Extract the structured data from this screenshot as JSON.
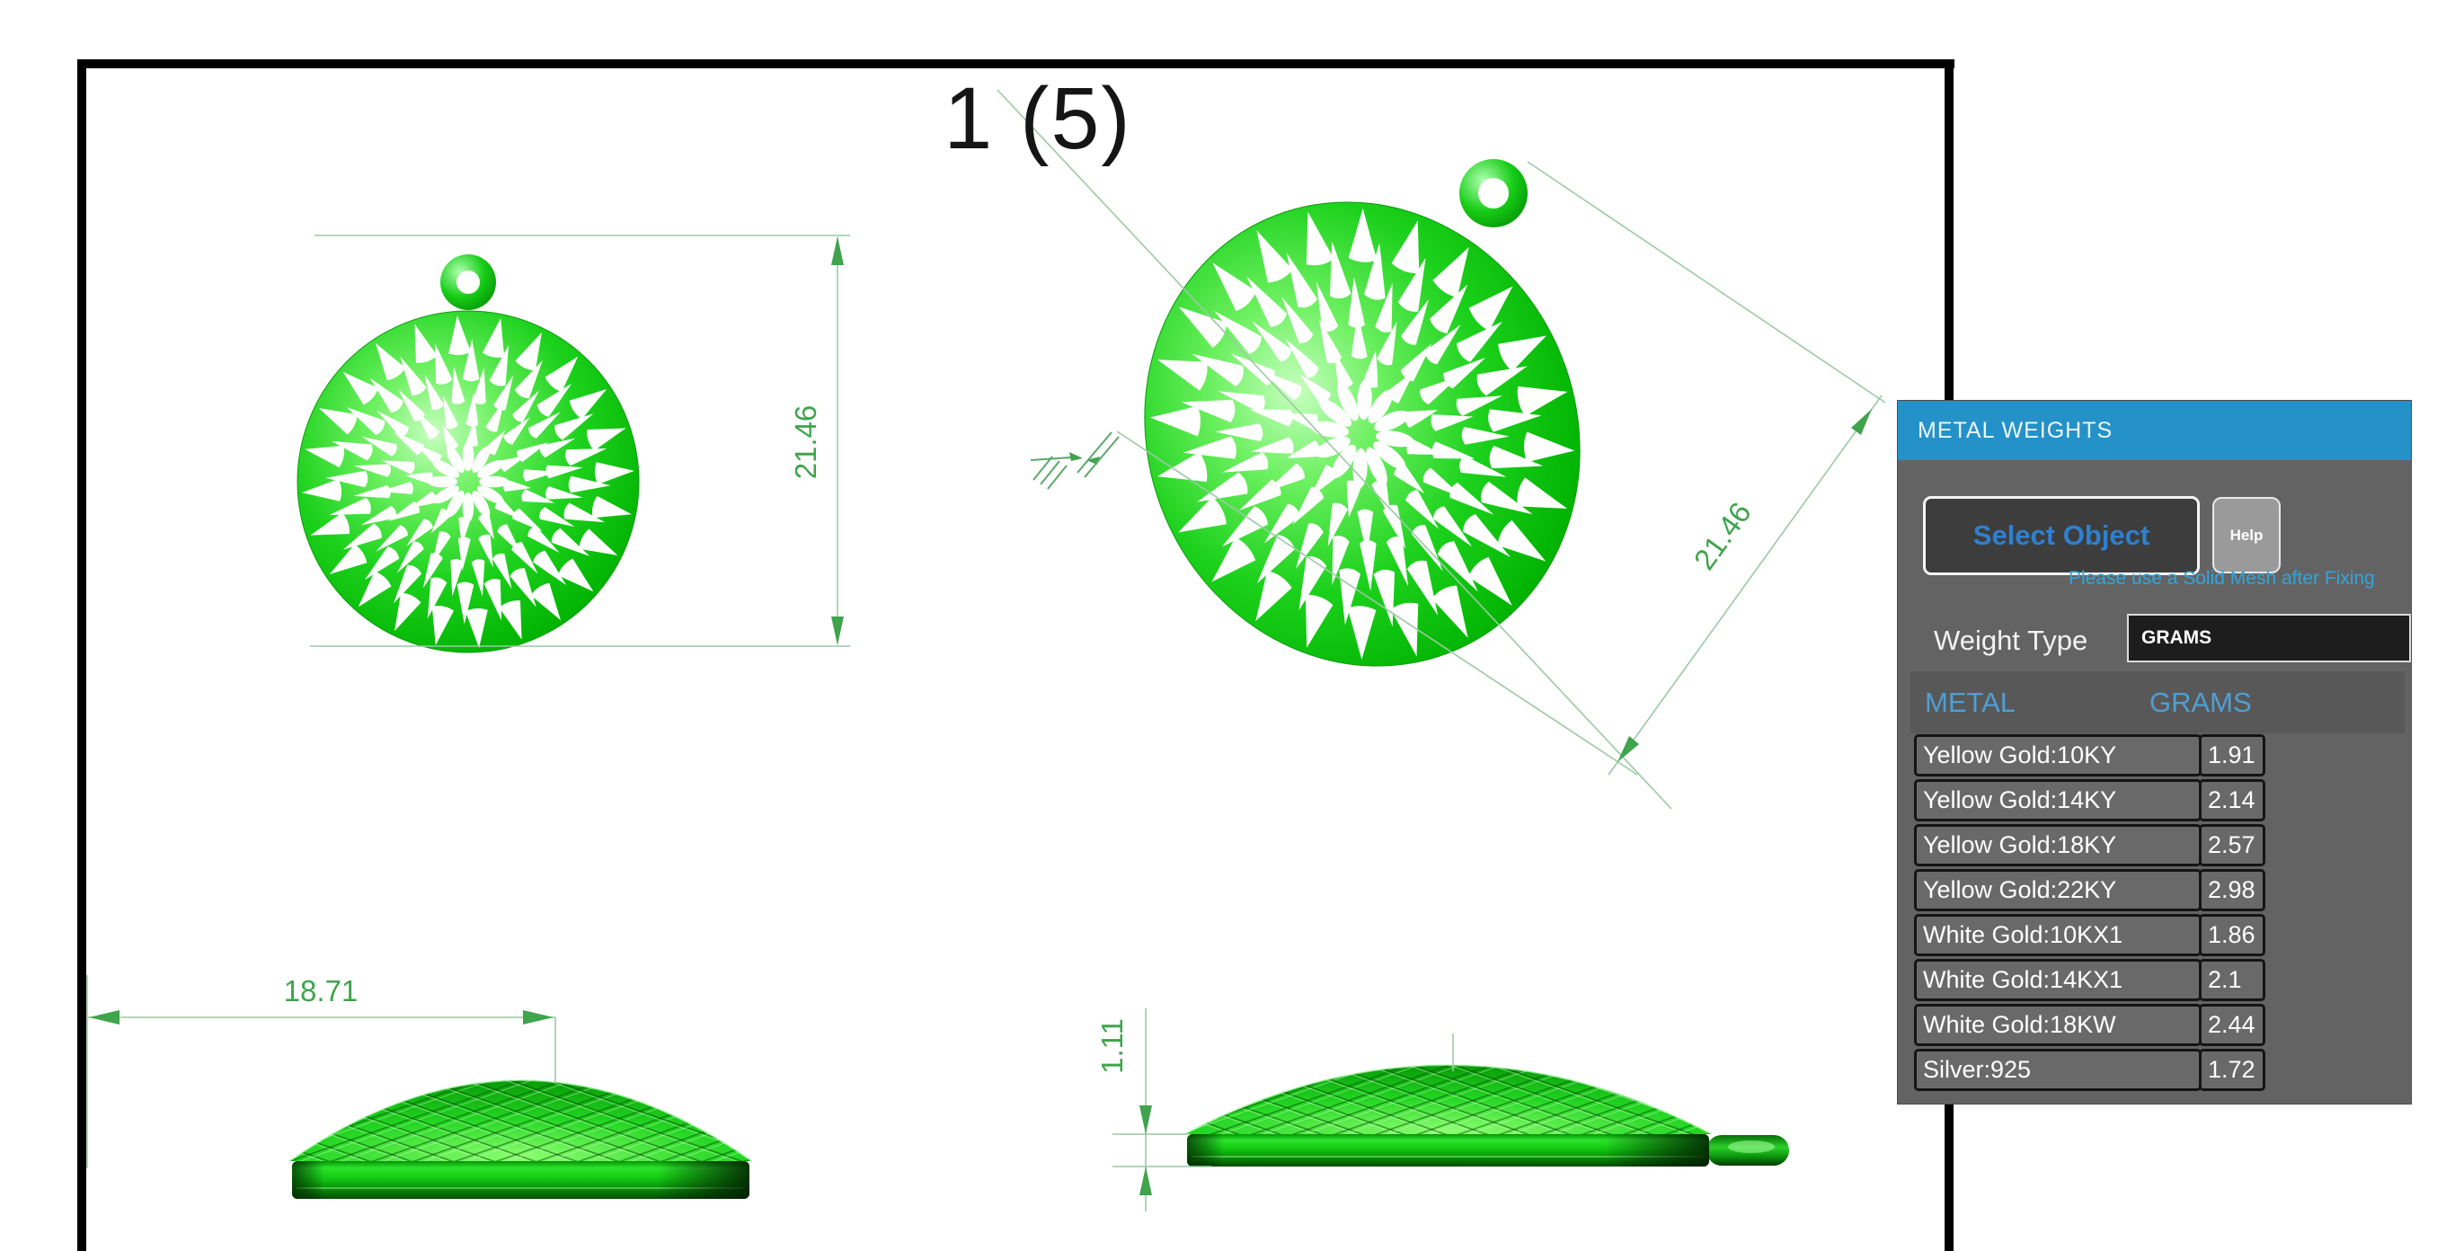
{
  "title": "1 (5)",
  "drawing": {
    "dims": {
      "front_height": "21.46",
      "tilted_diameter": "21.46",
      "side_width": "18.71",
      "side_thickness": "1.11"
    }
  },
  "panel": {
    "title": "METAL WEIGHTS",
    "select_object_label": "Select Object",
    "help_label": "Help",
    "notice": "Please use a Solid Mesh after Fixing",
    "weight_type_label": "Weight Type",
    "weight_type_value": "GRAMS",
    "table": {
      "columns": [
        "METAL",
        "GRAMS"
      ],
      "rows": [
        {
          "metal": "Yellow Gold:10KY",
          "grams": "1.91"
        },
        {
          "metal": "Yellow Gold:14KY",
          "grams": "2.14"
        },
        {
          "metal": "Yellow Gold:18KY",
          "grams": "2.57"
        },
        {
          "metal": "Yellow Gold:22KY",
          "grams": "2.98"
        },
        {
          "metal": "White Gold:10KX1",
          "grams": "1.86"
        },
        {
          "metal": "White Gold:14KX1",
          "grams": "2.1"
        },
        {
          "metal": "White Gold:18KW",
          "grams": "2.44"
        },
        {
          "metal": "Silver:925",
          "grams": "1.72"
        }
      ]
    }
  },
  "colors": {
    "titlebar_blue": "#2492c8",
    "button_text_blue": "#2f80d0",
    "notice_blue": "#2fa6df",
    "table_header_blue": "#4f9fd4",
    "model_green": "#00c400",
    "dimension_green": "#3fa44c"
  }
}
